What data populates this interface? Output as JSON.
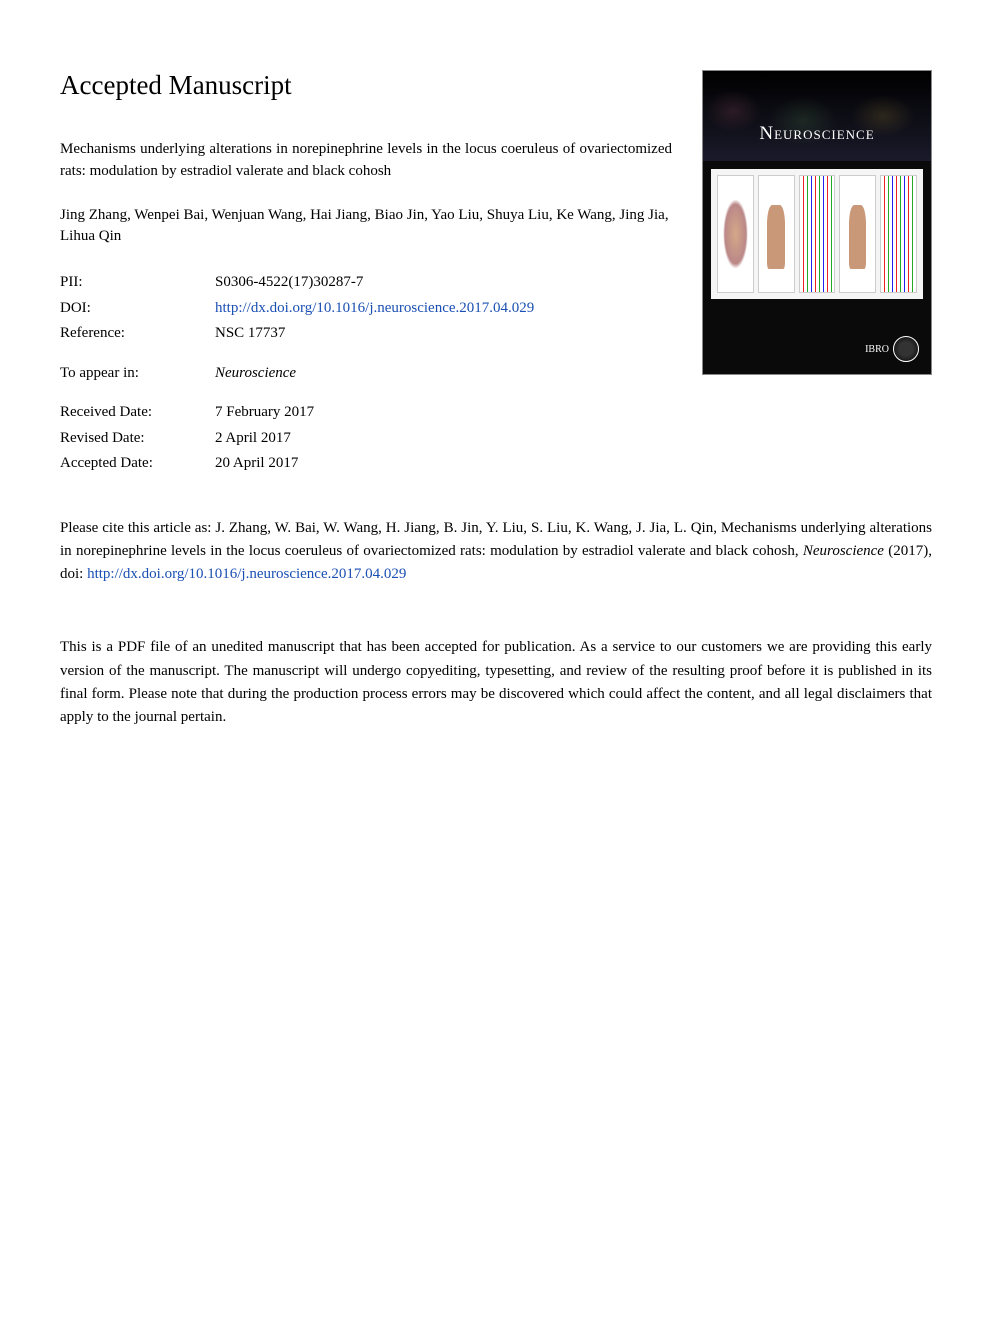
{
  "heading": "Accepted Manuscript",
  "article_title": "Mechanisms underlying alterations in norepinephrine levels in the locus coeruleus of ovariectomized rats: modulation by estradiol valerate and black cohosh",
  "authors": "Jing Zhang, Wenpei Bai, Wenjuan Wang, Hai Jiang, Biao Jin, Yao Liu, Shuya Liu, Ke Wang, Jing Jia, Lihua Qin",
  "meta": {
    "pii_label": "PII:",
    "pii_value": "S0306-4522(17)30287-7",
    "doi_label": "DOI:",
    "doi_value": "http://dx.doi.org/10.1016/j.neuroscience.2017.04.029",
    "reference_label": "Reference:",
    "reference_value": "NSC 17737",
    "appear_label": "To appear in:",
    "appear_value": "Neuroscience",
    "received_label": "Received Date:",
    "received_value": "7 February 2017",
    "revised_label": "Revised Date:",
    "revised_value": "2 April 2017",
    "accepted_label": "Accepted Date:",
    "accepted_value": "20 April 2017"
  },
  "cover": {
    "journal_name": "Neuroscience",
    "publisher_abbrev": "IBRO"
  },
  "citation": {
    "prefix": "Please cite this article as: J. Zhang, W. Bai, W. Wang, H. Jiang, B. Jin, Y. Liu, S. Liu, K. Wang, J. Jia, L. Qin, Mechanisms underlying alterations in norepinephrine levels in the locus coeruleus of ovariectomized rats: modulation by estradiol valerate and black cohosh, ",
    "journal": "Neuroscience",
    "year_doi": " (2017), doi: ",
    "doi_link": "http://dx.doi.org/10.1016/j.neuroscience.2017.04.029"
  },
  "disclaimer": "This is a PDF file of an unedited manuscript that has been accepted for publication. As a service to our customers we are providing this early version of the manuscript. The manuscript will undergo copyediting, typesetting, and review of the resulting proof before it is published in its final form. Please note that during the production process errors may be discovered which could affect the content, and all legal disclaimers that apply to the journal pertain.",
  "colors": {
    "link": "#1a4fb3",
    "text": "#000000",
    "background": "#ffffff",
    "cover_bg": "#0a0a0a"
  },
  "typography": {
    "body_family": "Times New Roman",
    "heading_size_pt": 20,
    "body_size_pt": 11
  }
}
